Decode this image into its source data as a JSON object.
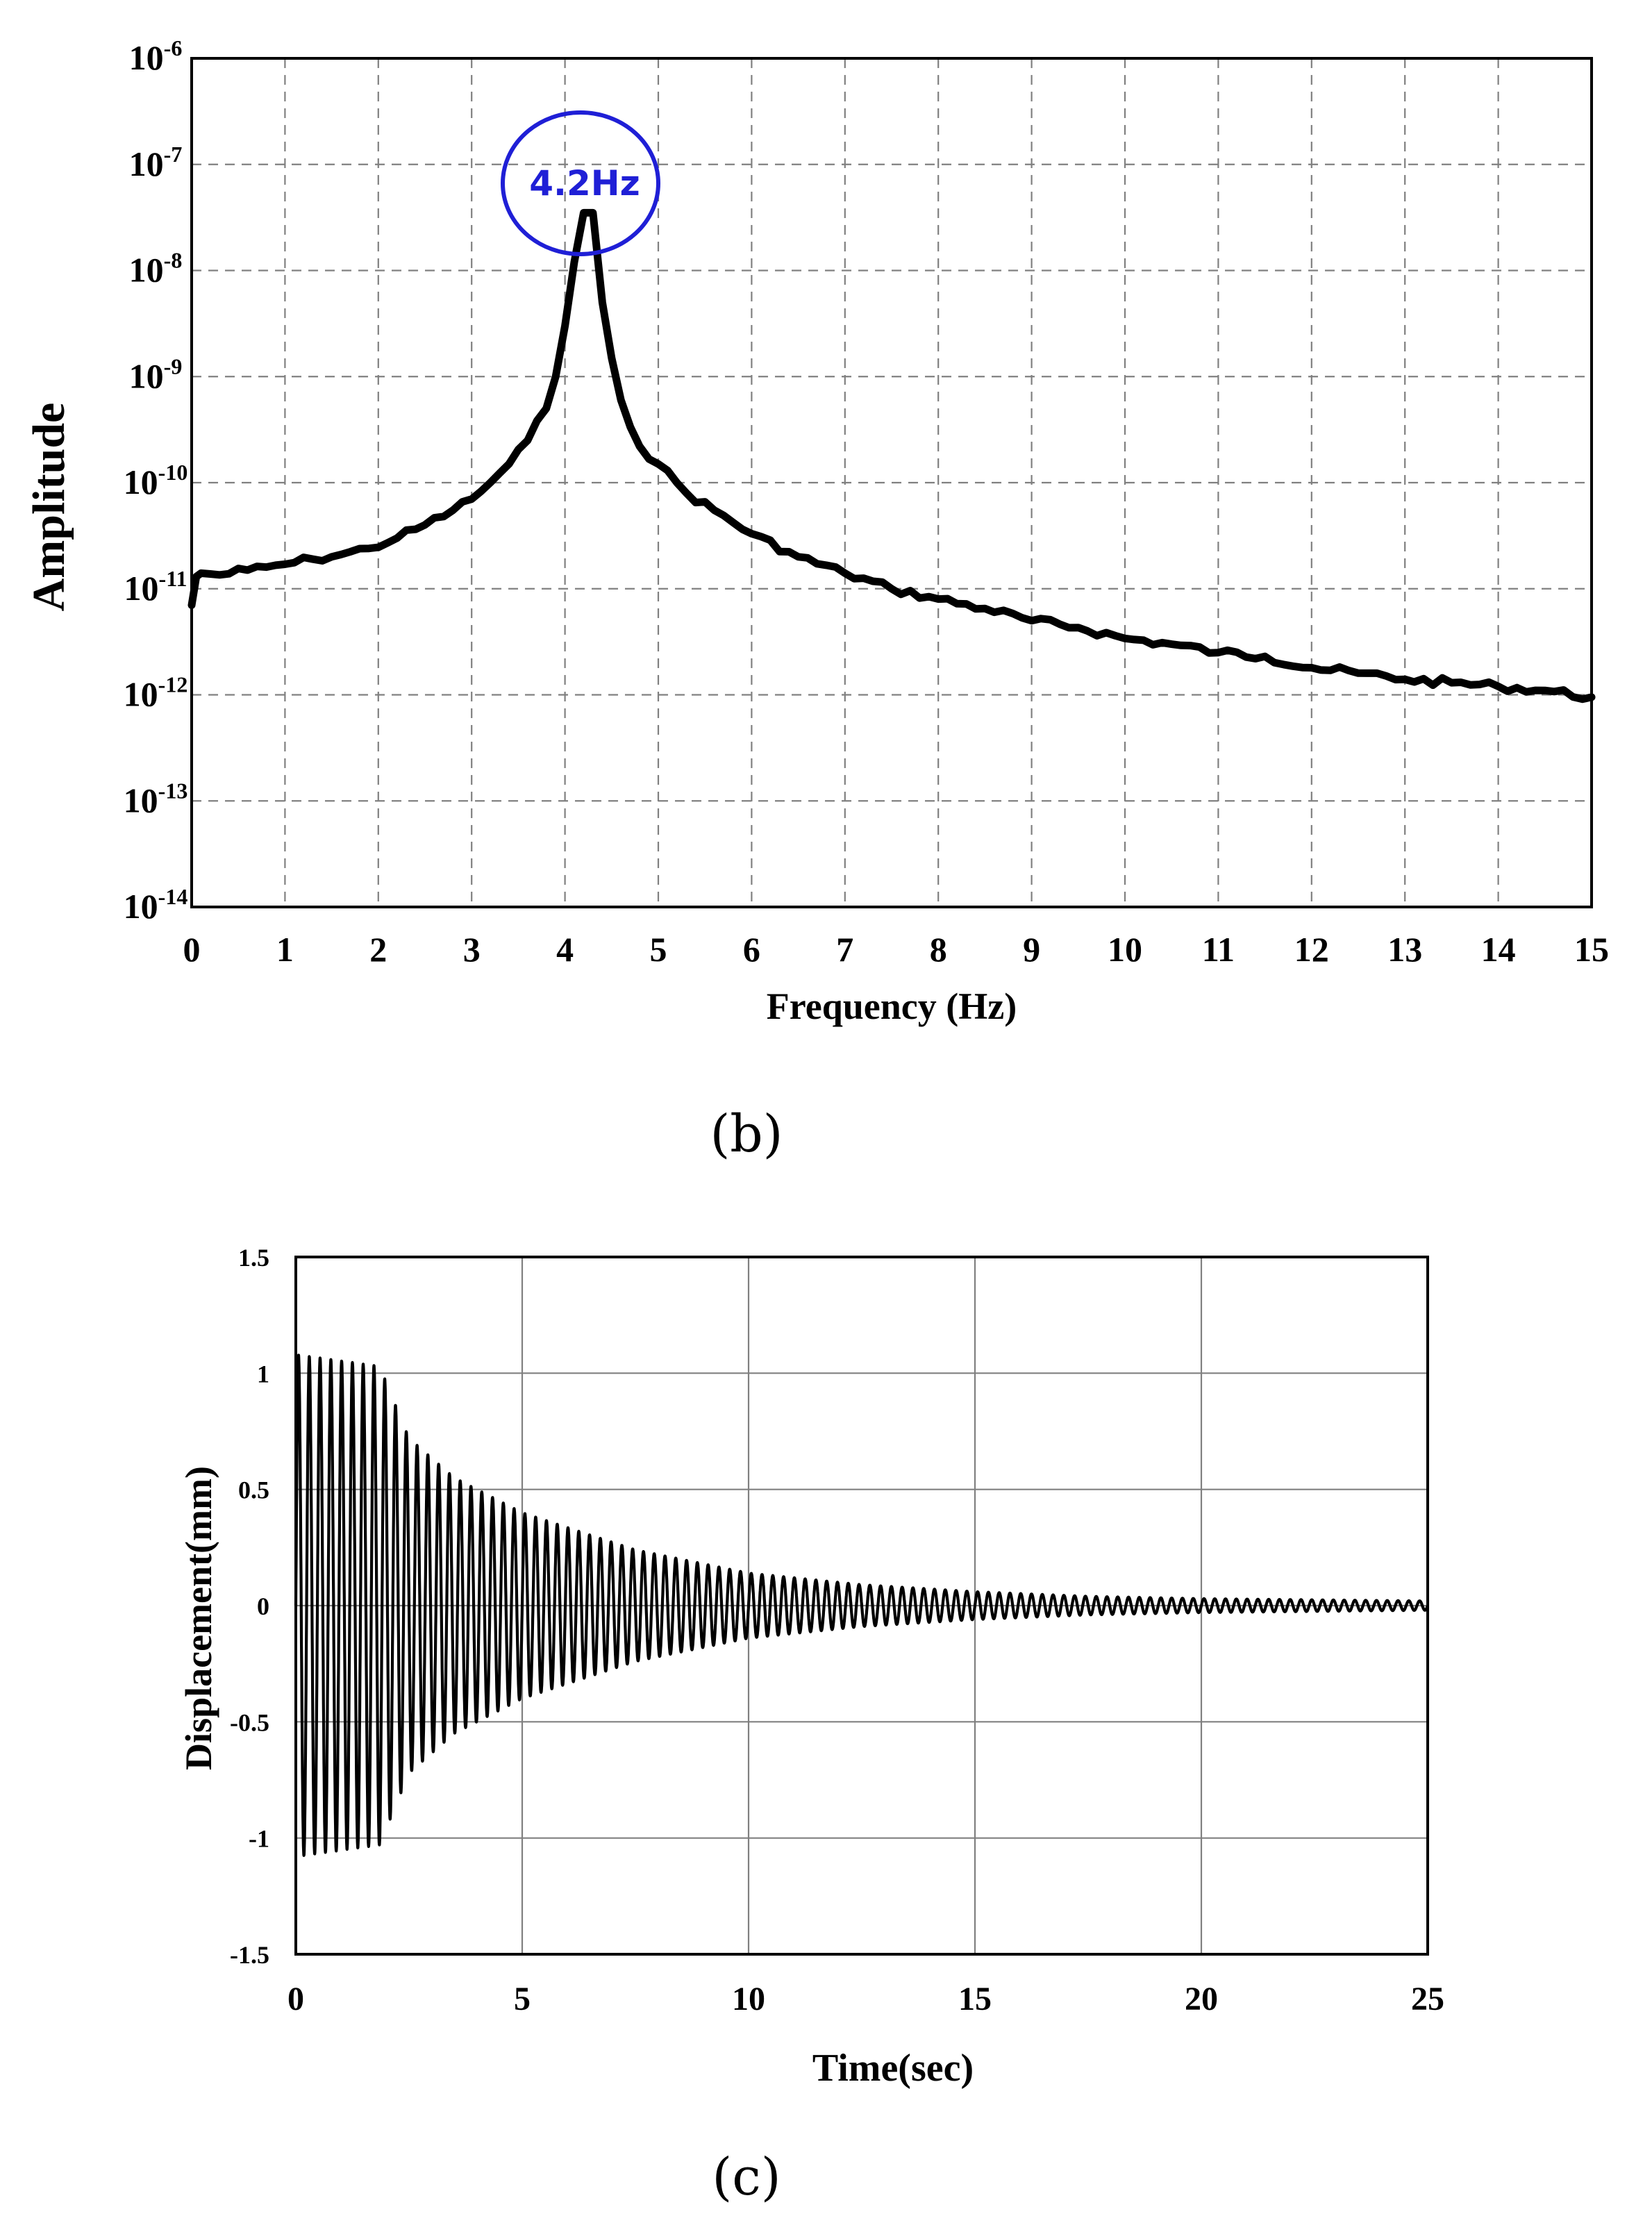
{
  "chart_data": [
    {
      "type": "line",
      "xlabel": "Frequency (Hz)",
      "ylabel": "Amplitude",
      "xlim": [
        0,
        15
      ],
      "ylim": [
        1e-14,
        1e-06
      ],
      "y_scale": "log",
      "grid": "dashed",
      "x_ticks": [
        "0",
        "1",
        "2",
        "3",
        "4",
        "5",
        "6",
        "7",
        "8",
        "9",
        "10",
        "11",
        "12",
        "13",
        "14",
        "15"
      ],
      "y_ticks": [
        {
          "base": "10",
          "exp": "-14"
        },
        {
          "base": "10",
          "exp": "-13"
        },
        {
          "base": "10",
          "exp": "-12"
        },
        {
          "base": "10",
          "exp": "-11"
        },
        {
          "base": "10",
          "exp": "-10"
        },
        {
          "base": "10",
          "exp": "-9"
        },
        {
          "base": "10",
          "exp": "-8"
        },
        {
          "base": "10",
          "exp": "-7"
        },
        {
          "base": "10",
          "exp": "-6"
        }
      ],
      "line_color": "#000000",
      "annotation": {
        "text": "4.2Hz",
        "x": 4.2,
        "y": 1e-07,
        "color": "#1f1fd6"
      },
      "x": [
        0,
        0.05,
        0.1,
        0.3,
        0.6,
        0.8,
        1.0,
        1.3,
        1.6,
        1.9,
        2.2,
        2.5,
        2.8,
        3.0,
        3.2,
        3.4,
        3.6,
        3.8,
        3.9,
        4.0,
        4.1,
        4.2,
        4.3,
        4.4,
        4.5,
        4.6,
        4.8,
        5.0,
        5.3,
        5.6,
        6.0,
        6.5,
        7.0,
        7.5,
        8.0,
        8.5,
        9.0,
        9.5,
        10.0,
        10.5,
        11.0,
        11.5,
        12.0,
        12.5,
        13.0,
        13.5,
        14.0,
        14.5,
        15.0
      ],
      "y": [
        7e-12,
        1.3e-11,
        1.4e-11,
        1.35e-11,
        1.5e-11,
        1.6e-11,
        1.7e-11,
        1.9e-11,
        2.1e-11,
        2.4e-11,
        3e-11,
        4e-11,
        5.5e-11,
        7e-11,
        1e-10,
        1.5e-10,
        2.5e-10,
        5e-10,
        1e-09,
        3e-09,
        1.2e-08,
        3.5e-08,
        3.5e-08,
        5e-09,
        1.5e-09,
        6e-10,
        2.2e-10,
        1.5e-10,
        8e-11,
        5.5e-11,
        3.3e-11,
        2e-11,
        1.4e-11,
        1e-11,
        8e-12,
        6.5e-12,
        5e-12,
        4.3e-12,
        3.4e-12,
        3e-12,
        2.5e-12,
        2.3e-12,
        1.8e-12,
        1.6e-12,
        1.4e-12,
        1.3e-12,
        1.2e-12,
        1.1e-12,
        9.5e-13
      ]
    },
    {
      "type": "line",
      "xlabel": "Time(sec)",
      "ylabel": "Displacement(mm)",
      "xlim": [
        0,
        25
      ],
      "ylim": [
        -1.5,
        1.5
      ],
      "grid": "solid",
      "x_ticks": [
        "0",
        "5",
        "10",
        "15",
        "20",
        "25"
      ],
      "y_ticks": [
        "1.5",
        "1",
        "0.5",
        "0",
        "-0.5",
        "-1",
        "-1.5"
      ],
      "y_tick_values": [
        1.5,
        1,
        0.5,
        0,
        -0.5,
        -1,
        -1.5
      ],
      "line_color": "#000000",
      "signal": {
        "description_values": "damped oscillation",
        "frequency_hz": 4.2,
        "initial_amplitude": 1.08,
        "forced_until_sec": 1.85,
        "envelope_t": [
          0,
          1.85,
          2.5,
          3.5,
          5,
          7.5,
          10,
          12.5,
          15,
          17.5,
          20,
          22.5,
          25
        ],
        "envelope_a": [
          1.08,
          1.03,
          0.72,
          0.55,
          0.4,
          0.24,
          0.14,
          0.09,
          0.06,
          0.04,
          0.03,
          0.025,
          0.02
        ]
      }
    }
  ],
  "panels": {
    "b": "(b)",
    "c": "(c)"
  }
}
